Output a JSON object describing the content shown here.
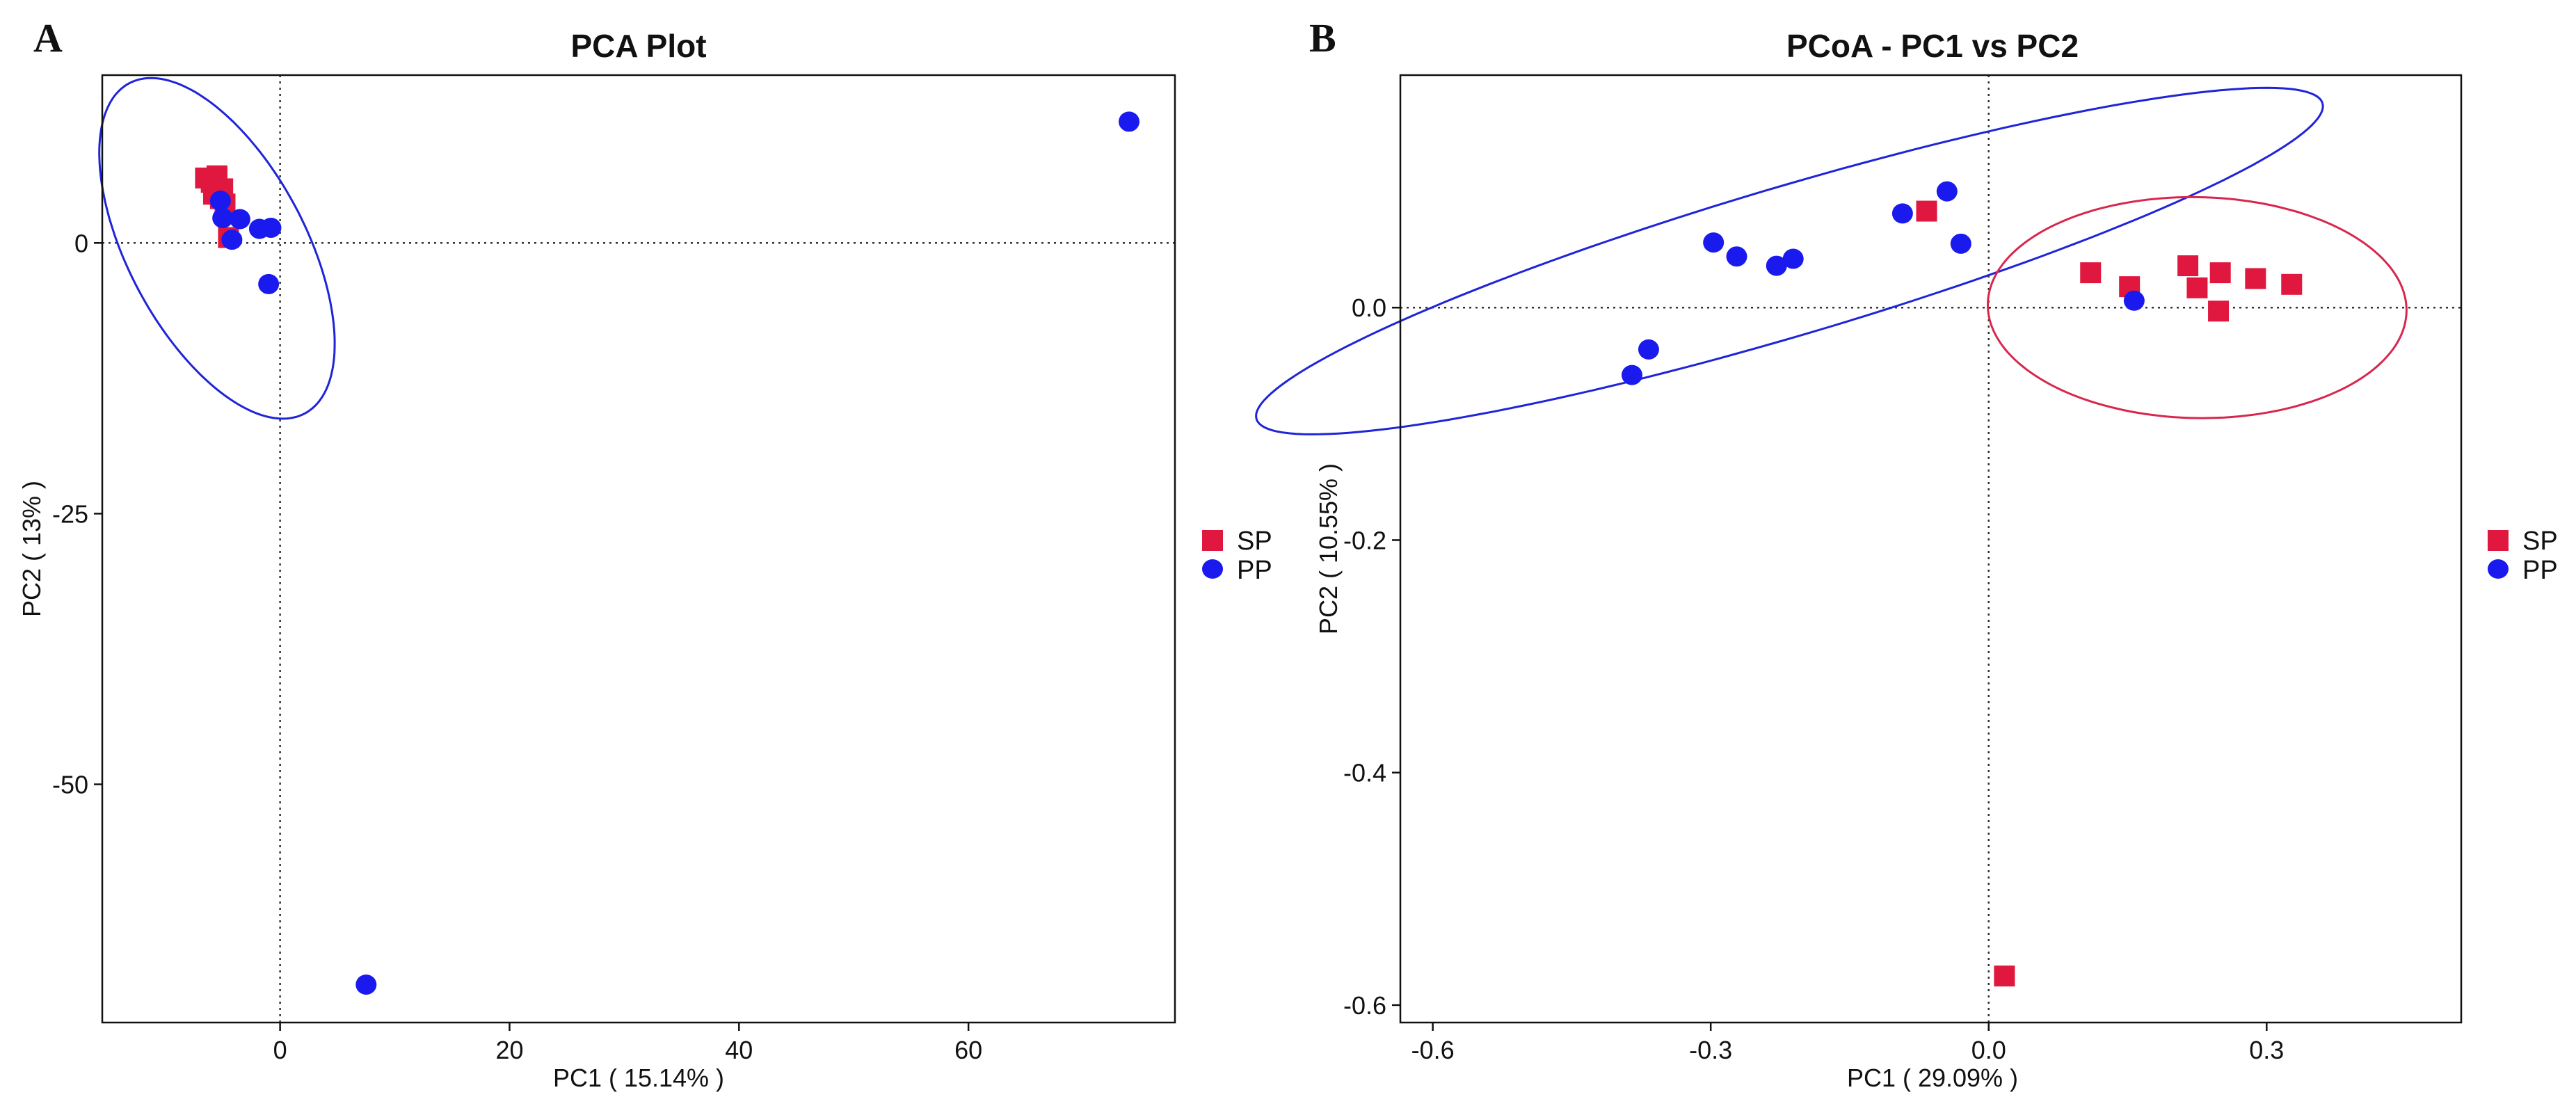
{
  "colors": {
    "SP": "#e0173f",
    "PP": "#1a1aee",
    "PP_ellipse": "#1f24d8",
    "SP_ellipse": "#d8274f"
  },
  "chart_data": [
    {
      "panel_letter": "A",
      "type": "scatter",
      "title": "PCA Plot",
      "xlabel": "PC1 ( 15.14% )",
      "ylabel": "PC2 ( 13% )",
      "xlim": [
        -15.5,
        78
      ],
      "ylim": [
        -72,
        15.5
      ],
      "xticks": [
        0,
        20,
        40,
        60
      ],
      "xtick_labels": [
        "0",
        "20",
        "40",
        "60"
      ],
      "yticks": [
        0,
        -25,
        -50
      ],
      "ytick_labels": [
        "0",
        "-25",
        "-50"
      ],
      "reference_lines": {
        "x": 0,
        "y": 0
      },
      "legend": [
        "SP",
        "PP"
      ],
      "legend_position": "right",
      "series": [
        {
          "name": "SP",
          "marker": "square",
          "points": [
            [
              -6.5,
              6.0
            ],
            [
              -5.5,
              6.2
            ],
            [
              -5.0,
              5.0
            ],
            [
              -5.8,
              4.5
            ],
            [
              -4.8,
              3.6
            ],
            [
              -6.0,
              5.6
            ],
            [
              -5.2,
              4.1
            ],
            [
              -4.5,
              0.5
            ]
          ]
        },
        {
          "name": "PP",
          "marker": "circle",
          "points": [
            [
              74.0,
              11.2
            ],
            [
              -5.2,
              3.9
            ],
            [
              -5.0,
              2.3
            ],
            [
              -3.5,
              2.2
            ],
            [
              -1.8,
              1.3
            ],
            [
              -0.8,
              1.4
            ],
            [
              -4.2,
              0.3
            ],
            [
              -1.0,
              -3.8
            ],
            [
              7.5,
              -68.5
            ]
          ]
        }
      ],
      "ellipses": [
        {
          "group": "PP",
          "cx": -5.5,
          "cy": -0.5,
          "rx": 16.3,
          "ry": 8.2,
          "angle_deg": -62
        }
      ]
    },
    {
      "panel_letter": "B",
      "type": "scatter",
      "title": "PCoA - PC1 vs PC2",
      "xlabel": "PC1 ( 29.09% )",
      "ylabel": "PC2 ( 10.55% )",
      "xlim": [
        -0.635,
        0.51
      ],
      "ylim": [
        -0.615,
        0.2
      ],
      "xticks": [
        -0.6,
        -0.3,
        0.0,
        0.3
      ],
      "xtick_labels": [
        "-0.6",
        "-0.3",
        "0.0",
        "0.3"
      ],
      "yticks": [
        0.0,
        -0.2,
        -0.4,
        -0.6
      ],
      "ytick_labels": [
        "0.0",
        "-0.2",
        "-0.4",
        "-0.6"
      ],
      "reference_lines": {
        "x": 0,
        "y": 0
      },
      "legend": [
        "SP",
        "PP"
      ],
      "legend_position": "right",
      "series": [
        {
          "name": "SP",
          "marker": "square",
          "points": [
            [
              -0.067,
              0.083
            ],
            [
              0.11,
              0.03
            ],
            [
              0.152,
              0.018
            ],
            [
              0.215,
              0.036
            ],
            [
              0.225,
              0.017
            ],
            [
              0.25,
              0.03
            ],
            [
              0.248,
              -0.003
            ],
            [
              0.288,
              0.025
            ],
            [
              0.327,
              0.02
            ],
            [
              0.017,
              -0.575
            ]
          ]
        },
        {
          "name": "PP",
          "marker": "circle",
          "points": [
            [
              -0.385,
              -0.058
            ],
            [
              -0.367,
              -0.036
            ],
            [
              -0.297,
              0.056
            ],
            [
              -0.272,
              0.044
            ],
            [
              -0.229,
              0.036
            ],
            [
              -0.211,
              0.042
            ],
            [
              -0.093,
              0.081
            ],
            [
              -0.045,
              0.1
            ],
            [
              -0.03,
              0.055
            ],
            [
              0.157,
              0.006
            ]
          ]
        }
      ],
      "ellipses": [
        {
          "group": "PP",
          "cx": -0.215,
          "cy": 0.04,
          "rx": 0.6,
          "ry": 0.064,
          "angle_deg": 16.5
        },
        {
          "group": "SP",
          "cx": 0.225,
          "cy": 0.0,
          "rx": 0.226,
          "ry": 0.095,
          "angle_deg": -1
        }
      ]
    }
  ]
}
